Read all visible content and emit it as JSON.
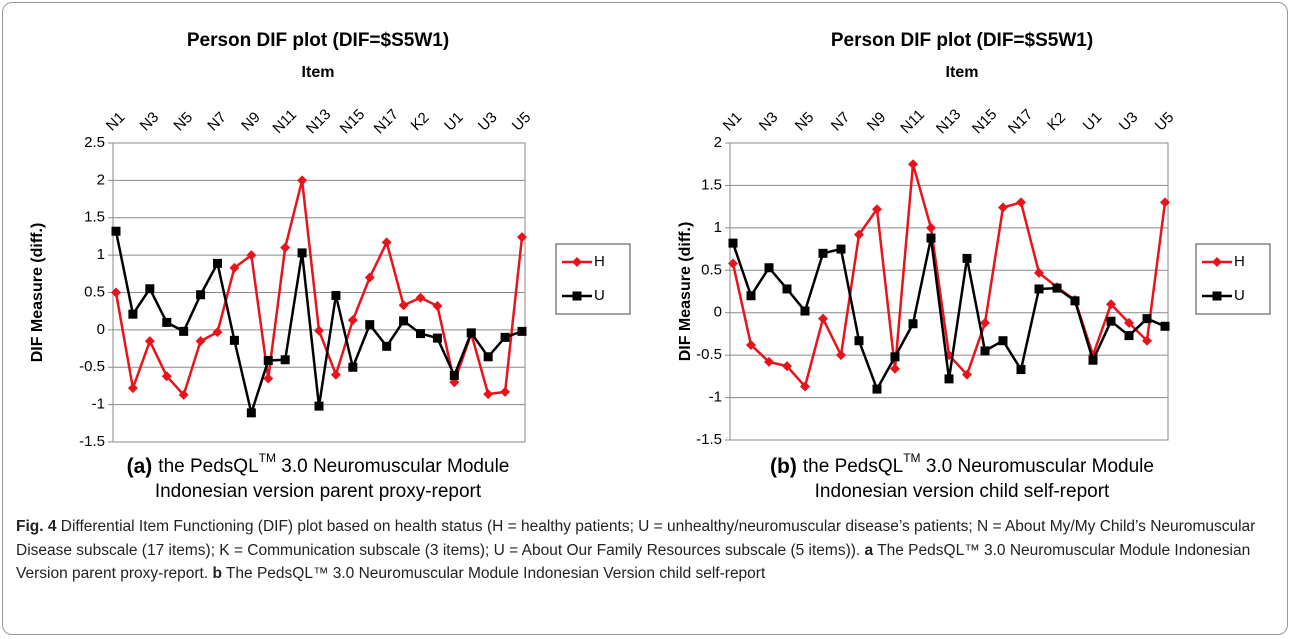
{
  "chart_data": [
    {
      "type": "line",
      "title": "Person DIF plot (DIF=$S5W1)",
      "xlabel": "Item",
      "ylabel": "DIF Measure (diff.)",
      "sublabel": "(a)",
      "subcaption_start": "the PedsQL",
      "subcaption_tm": "TM",
      "subcaption_rest": " 3.0 Neuromuscular Module",
      "subcaption_line2": "Indonesian version parent proxy-report",
      "categories": [
        "N1",
        null,
        "N3",
        null,
        "N5",
        null,
        "N7",
        null,
        "N9",
        null,
        "N11",
        null,
        "N13",
        null,
        "N15",
        null,
        "N17",
        null,
        "K2",
        null,
        "U1",
        null,
        "U3",
        null,
        "U5"
      ],
      "series": [
        {
          "name": "H",
          "color": "#e8141b",
          "values": [
            0.5,
            -0.78,
            -0.15,
            -0.62,
            -0.87,
            -0.15,
            -0.03,
            0.83,
            1.0,
            -0.65,
            1.1,
            2.0,
            -0.01,
            -0.6,
            0.13,
            0.7,
            1.17,
            0.33,
            0.43,
            0.32,
            -0.7,
            -0.05,
            -0.86,
            -0.83,
            1.24
          ]
        },
        {
          "name": "U",
          "color": "#000000",
          "values": [
            1.32,
            0.21,
            0.55,
            0.1,
            -0.02,
            0.47,
            0.89,
            -0.14,
            -1.11,
            -0.41,
            -0.4,
            1.03,
            -1.02,
            0.46,
            -0.5,
            0.07,
            -0.22,
            0.12,
            -0.05,
            -0.11,
            -0.61,
            -0.04,
            -0.36,
            -0.1,
            -0.02
          ]
        }
      ],
      "ylim": [
        -1.5,
        2.5
      ],
      "yticks": [
        2.5,
        2,
        1.5,
        1,
        0.5,
        0,
        -0.5,
        -1,
        -1.5
      ],
      "grid": true,
      "legend": "right"
    },
    {
      "type": "line",
      "title": "Person DIF plot (DIF=$S5W1)",
      "xlabel": "Item",
      "ylabel": "DIF Measure (diff.)",
      "sublabel": "(b)",
      "subcaption_start": "the PedsQL",
      "subcaption_tm": "TM",
      "subcaption_rest": " 3.0 Neuromuscular Module",
      "subcaption_line2": "Indonesian version child self-report",
      "categories": [
        "N1",
        null,
        "N3",
        null,
        "N5",
        null,
        "N7",
        null,
        "N9",
        null,
        "N11",
        null,
        "N13",
        null,
        "N15",
        null,
        "N17",
        null,
        "K2",
        null,
        "U1",
        null,
        "U3",
        null,
        "U5"
      ],
      "series": [
        {
          "name": "H",
          "color": "#e8141b",
          "values": [
            0.58,
            -0.38,
            -0.58,
            -0.63,
            -0.87,
            -0.07,
            -0.5,
            0.92,
            1.22,
            -0.66,
            1.75,
            1.0,
            -0.5,
            -0.73,
            -0.12,
            1.24,
            1.3,
            0.47,
            0.3,
            0.15,
            -0.5,
            0.1,
            -0.12,
            -0.33,
            1.3
          ]
        },
        {
          "name": "U",
          "color": "#000000",
          "values": [
            0.82,
            0.2,
            0.53,
            0.28,
            0.02,
            0.7,
            0.75,
            -0.33,
            -0.9,
            -0.52,
            -0.13,
            0.88,
            -0.78,
            0.64,
            -0.45,
            -0.33,
            -0.67,
            0.28,
            0.29,
            0.14,
            -0.56,
            -0.1,
            -0.27,
            -0.07,
            -0.16
          ]
        }
      ],
      "ylim": [
        -1.5,
        2
      ],
      "yticks": [
        2,
        1.5,
        1,
        0.5,
        0,
        -0.5,
        -1,
        -1.5
      ],
      "grid": true,
      "legend": "right"
    }
  ],
  "caption": {
    "label": "Fig. 4",
    "text": " Differential Item Functioning (DIF) plot based on health status (H = healthy patients; U = unhealthy/neuromuscular disease’s patients; N = About My/My Child’s Neuromuscular Disease subscale (17 items); K = Communication subscale (3 items); U = About Our Family Resources subscale (5 items)). ",
    "a_label": "a",
    "a_text": " The PedsQL™ 3.0 Neuromuscular Module Indonesian Version parent proxy-report. ",
    "b_label": "b",
    "b_text": " The PedsQL™ 3.0 Neuromuscular Module Indonesian Version child self-report"
  }
}
